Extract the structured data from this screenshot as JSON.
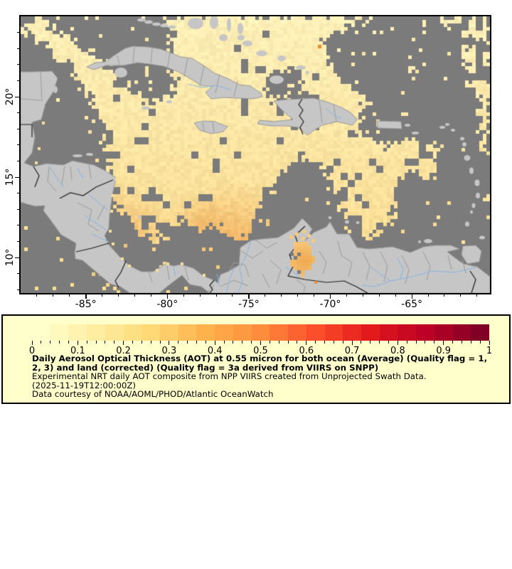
{
  "map": {
    "x_axis": {
      "major": [
        {
          "label": "-85°",
          "lon": -85
        },
        {
          "label": "-80°",
          "lon": -80
        },
        {
          "label": "-75°",
          "lon": -75
        },
        {
          "label": "-70°",
          "lon": -70
        },
        {
          "label": "-65°",
          "lon": -65
        }
      ]
    },
    "y_axis": {
      "major": [
        {
          "label": "20°",
          "lat": 20
        },
        {
          "label": "15°",
          "lat": 15
        },
        {
          "label": "10°",
          "lat": 10
        }
      ]
    },
    "colors": {
      "no_data": "#7b7b7b",
      "land": "#c6c6c6",
      "coast": "#9a9a9a",
      "border_admin": "#9c9c9c",
      "border_country": "#1f1f1f",
      "river": "#85b5e5",
      "aot_low": "#fdf0b8",
      "aot_mid": "#f9d98c",
      "aot_high": "#eea24c",
      "frame": "#000000"
    }
  },
  "legend": {
    "background": "#ffffcc",
    "colorbar": {
      "segments": [
        "#ffffcc",
        "#fff9bd",
        "#fff3af",
        "#ffeda0",
        "#fee692",
        "#fee084",
        "#fed976",
        "#fecc68",
        "#febf5a",
        "#feb24c",
        "#fea647",
        "#fd9941",
        "#fd8d3c",
        "#fd7836",
        "#fc6330",
        "#fc4e2a",
        "#f43d25",
        "#eb2b21",
        "#e31a1c",
        "#d6111f",
        "#c90921",
        "#bd0026",
        "#a90026",
        "#940026",
        "#800026"
      ],
      "tick_labels": [
        "0",
        "0.1",
        "0.2",
        "0.3",
        "0.4",
        "0.5",
        "0.6",
        "0.7",
        "0.8",
        "0.9",
        "1"
      ],
      "minor_tick_interval": 0.02
    },
    "caption": {
      "title_line1": "Daily Aerosol Optical Thickness (AOT) at 0.55 micron for both ocean (Average) (Quality flag = 1,",
      "title_line2": "2, 3) and land (corrected) (Quality flag = 3a derived from VIIRS on SNPP)",
      "line3": "Experimental NRT daily AOT composite from NPP VIIRS created from Unprojected Swath Data.",
      "line4": "(2025-11-19T12:00:00Z)",
      "line5": "Data courtesy of NOAA/AOML/PHOD/Atlantic OceanWatch"
    }
  },
  "chart_data": {
    "type": "heatmap",
    "title": "Daily Aerosol Optical Thickness (AOT) at 0.55 micron",
    "value_range": [
      0,
      1
    ],
    "colorbar_tick_labels": [
      "0",
      "0.1",
      "0.2",
      "0.3",
      "0.4",
      "0.5",
      "0.6",
      "0.7",
      "0.8",
      "0.9",
      "1"
    ],
    "lon_tick_labels": [
      "-85°",
      "-80°",
      "-75°",
      "-70°",
      "-65°"
    ],
    "lat_tick_labels": [
      "20°",
      "15°",
      "10°"
    ],
    "timestamp": "2025-11-19T12:00:00Z",
    "source": "NPP VIIRS / NOAA/AOML/PHOD/Atlantic OceanWatch"
  }
}
